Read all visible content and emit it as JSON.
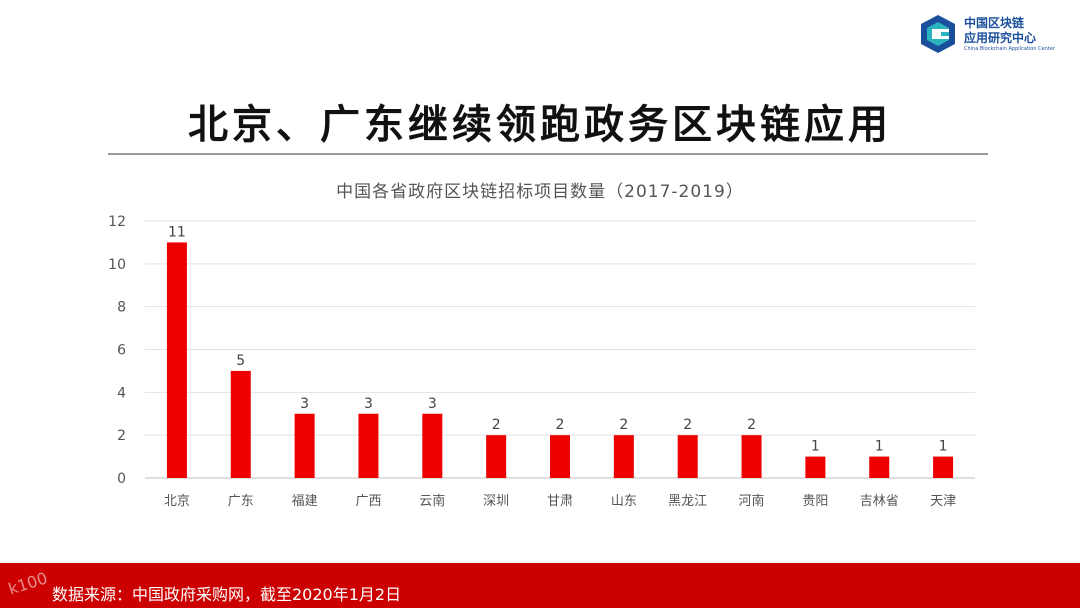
{
  "logo": {
    "name_line1": "中国区块链",
    "name_line2": "应用研究中心",
    "name_en": "China Blockchain Application Center",
    "colors": {
      "blue": "#1b4f9c",
      "teal": "#2bb3c0"
    }
  },
  "main_title": "北京、广东继续领跑政务区块链应用",
  "chart_data": {
    "type": "bar",
    "title": "中国各省政府区块链招标项目数量（2017-2019）",
    "xlabel": "",
    "ylabel": "",
    "categories": [
      "北京",
      "广东",
      "福建",
      "广西",
      "云南",
      "深圳",
      "甘肃",
      "山东",
      "黑龙江",
      "河南",
      "贵阳",
      "吉林省",
      "天津"
    ],
    "values": [
      11,
      5,
      3,
      3,
      3,
      2,
      2,
      2,
      2,
      2,
      1,
      1,
      1
    ],
    "data_labels": [
      "11",
      "5",
      "3",
      "3",
      "3",
      "2",
      "2",
      "2",
      "2",
      "2",
      "1",
      "1",
      "1"
    ],
    "ylim": [
      0,
      12
    ],
    "yticks": [
      0,
      2,
      4,
      6,
      8,
      10,
      12
    ],
    "grid": true,
    "legend": "none",
    "bar_color": "#ee0000"
  },
  "footer": {
    "source": "数据来源：中国政府采购网，截至2020年1月2日",
    "watermark": "k100",
    "color": "#cc0000"
  }
}
